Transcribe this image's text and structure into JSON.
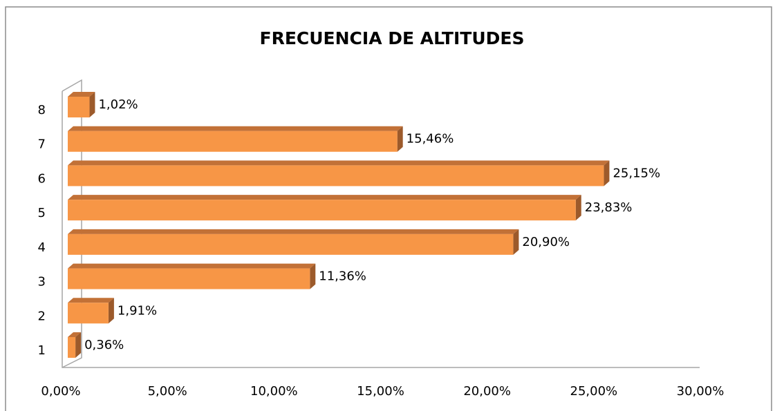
{
  "chart_data": {
    "type": "bar3d_horizontal",
    "title": "FRECUENCIA DE ALTITUDES",
    "categories": [
      "1",
      "2",
      "3",
      "4",
      "5",
      "6",
      "7",
      "8"
    ],
    "values": [
      0.36,
      1.91,
      11.36,
      20.9,
      23.83,
      25.15,
      15.46,
      1.02
    ],
    "value_labels": [
      "0,36%",
      "1,91%",
      "11,36%",
      "20,90%",
      "23,83%",
      "25,15%",
      "15,46%",
      "1,02%"
    ],
    "color": "#f79646",
    "xlim": [
      0,
      30
    ],
    "xticks": [
      {
        "value": 0,
        "label": "0,00%"
      },
      {
        "value": 5,
        "label": "5,00%"
      },
      {
        "value": 10,
        "label": "10,00%"
      },
      {
        "value": 15,
        "label": "15,00%"
      },
      {
        "value": 20,
        "label": "20,00%"
      },
      {
        "value": 25,
        "label": "25,00%"
      },
      {
        "value": 30,
        "label": "30,00%"
      }
    ],
    "grid": false
  }
}
